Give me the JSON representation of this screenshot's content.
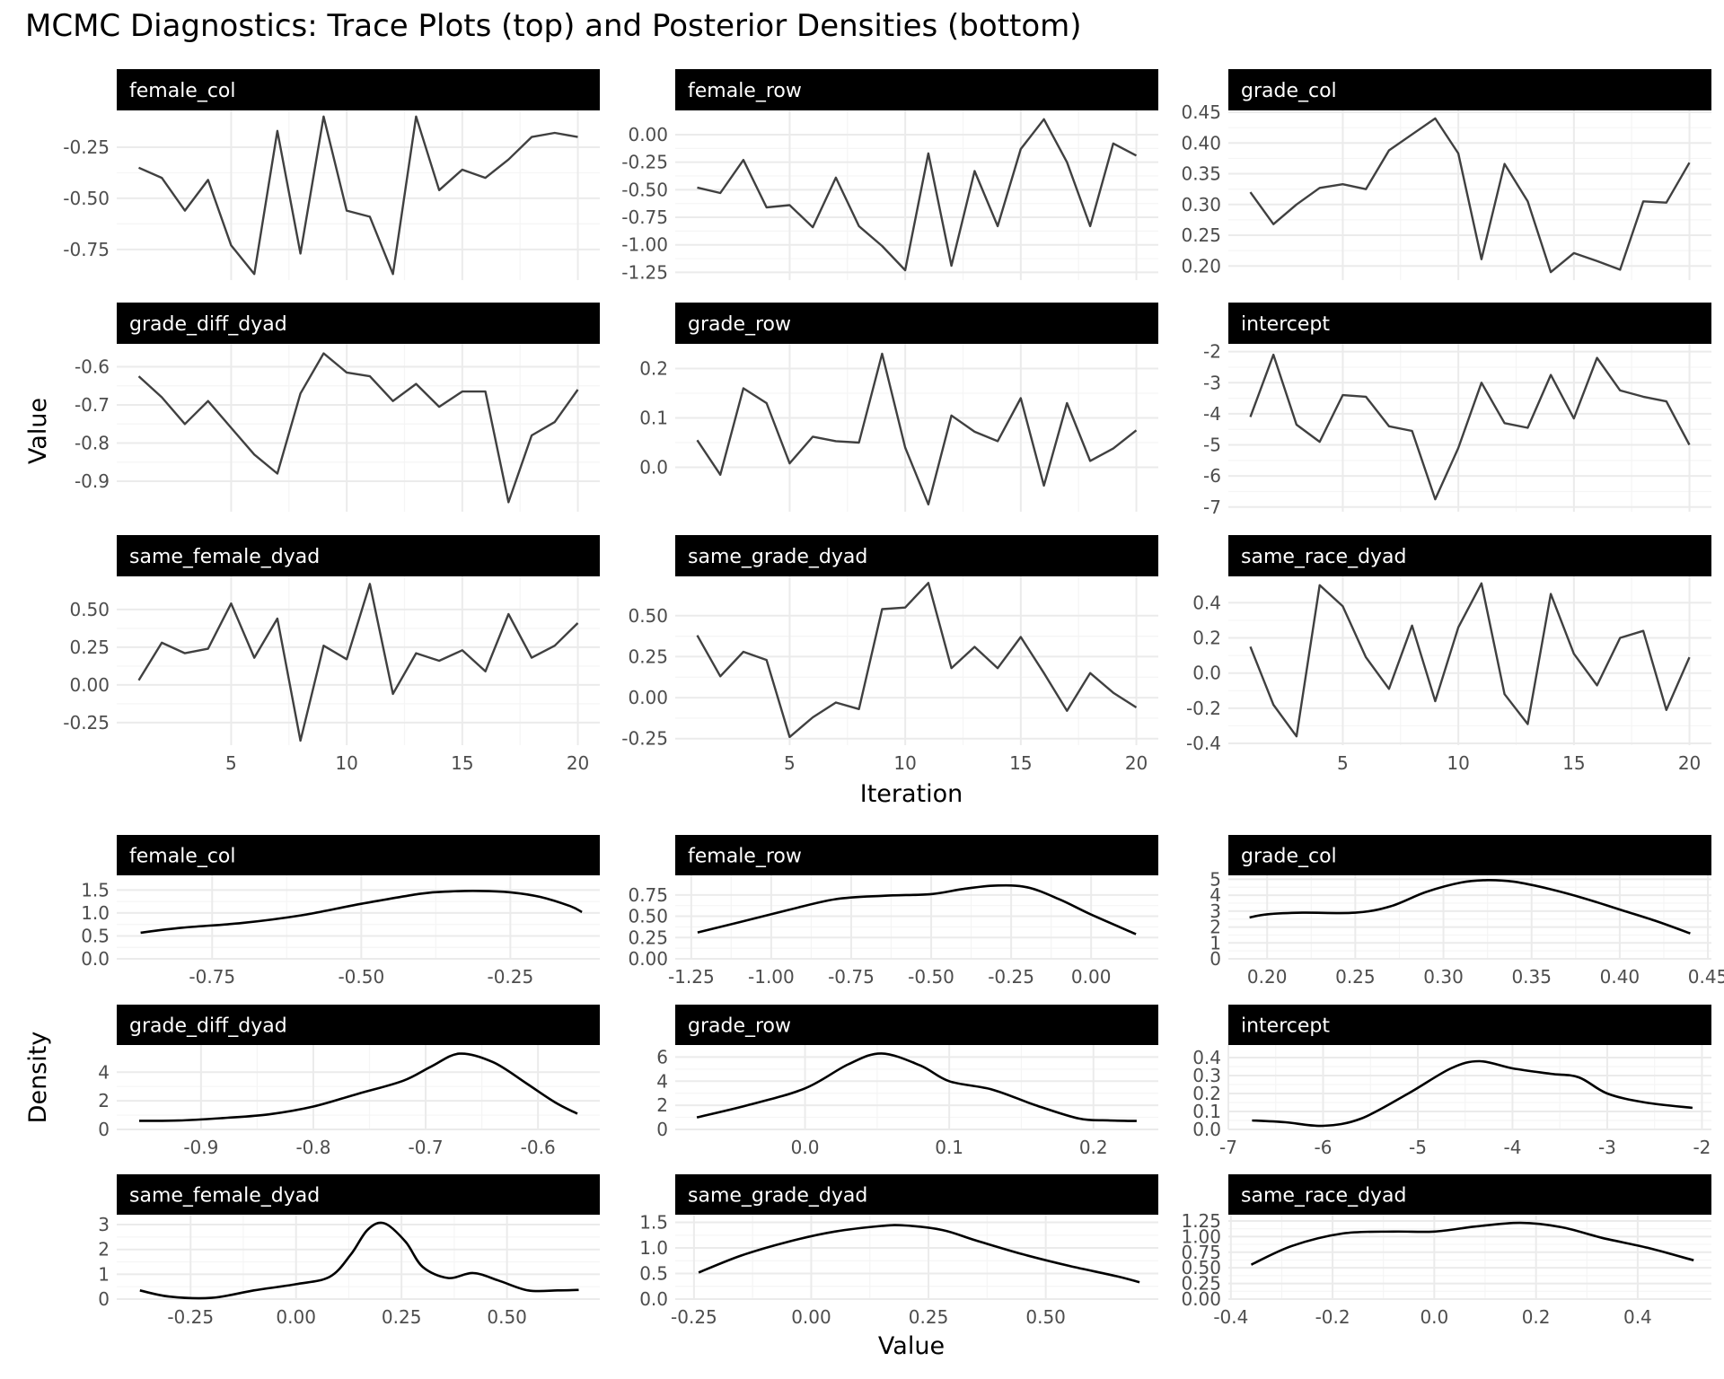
{
  "title": "MCMC Diagnostics: Trace Plots (top) and Posterior Densities (bottom)",
  "colors": {
    "strip_bg": "#000000",
    "strip_text": "#ffffff",
    "trace_line": "#404040",
    "density_line": "#000000",
    "grid_major": "#ebebeb",
    "grid_minor": "#f5f5f5"
  },
  "chart_data": [
    {
      "name": "trace",
      "type": "line",
      "xlabel": "Iteration",
      "ylabel": "Value",
      "x": [
        1,
        2,
        3,
        4,
        5,
        6,
        7,
        8,
        9,
        10,
        11,
        12,
        13,
        14,
        15,
        16,
        17,
        18,
        19,
        20
      ],
      "xlim": [
        0.05,
        20.95
      ],
      "xticks": [
        5,
        10,
        15,
        20
      ],
      "xtick_labels": [
        "5",
        "10",
        "15",
        "20"
      ],
      "grid": true,
      "panels": [
        {
          "label": "female_col",
          "ylim": [
            -0.9,
            -0.07
          ],
          "yticks": [
            -0.75,
            -0.5,
            -0.25
          ],
          "ytick_labels": [
            "-0.75",
            "-0.50",
            "-0.25"
          ],
          "values": [
            -0.35,
            -0.4,
            -0.56,
            -0.41,
            -0.73,
            -0.87,
            -0.17,
            -0.77,
            -0.1,
            -0.56,
            -0.59,
            -0.87,
            -0.1,
            -0.46,
            -0.36,
            -0.4,
            -0.31,
            -0.2,
            -0.18,
            -0.2
          ]
        },
        {
          "label": "female_row",
          "ylim": [
            -1.32,
            0.22
          ],
          "yticks": [
            -1.25,
            -1.0,
            -0.75,
            -0.5,
            -0.25,
            0.0
          ],
          "ytick_labels": [
            "-1.25",
            "-1.00",
            "-0.75",
            "-0.50",
            "-0.25",
            "0.00"
          ],
          "values": [
            -0.48,
            -0.53,
            -0.23,
            -0.66,
            -0.64,
            -0.84,
            -0.39,
            -0.83,
            -1.01,
            -1.23,
            -0.17,
            -1.19,
            -0.33,
            -0.83,
            -0.13,
            0.14,
            -0.25,
            -0.83,
            -0.08,
            -0.19
          ]
        },
        {
          "label": "grade_col",
          "ylim": [
            0.177,
            0.453
          ],
          "yticks": [
            0.2,
            0.25,
            0.3,
            0.35,
            0.4,
            0.45
          ],
          "ytick_labels": [
            "0.20",
            "0.25",
            "0.30",
            "0.35",
            "0.40",
            "0.45"
          ],
          "values": [
            0.32,
            0.268,
            0.3,
            0.327,
            0.333,
            0.325,
            0.388,
            0.414,
            0.44,
            0.383,
            0.211,
            0.366,
            0.305,
            0.19,
            0.221,
            0.208,
            0.194,
            0.305,
            0.303,
            0.368
          ]
        },
        {
          "label": "grade_diff_dyad",
          "ylim": [
            -0.98,
            -0.54
          ],
          "yticks": [
            -0.9,
            -0.8,
            -0.7,
            -0.6
          ],
          "ytick_labels": [
            "-0.9",
            "-0.8",
            "-0.7",
            "-0.6"
          ],
          "values": [
            -0.625,
            -0.68,
            -0.75,
            -0.69,
            -0.76,
            -0.83,
            -0.88,
            -0.67,
            -0.565,
            -0.615,
            -0.625,
            -0.69,
            -0.645,
            -0.705,
            -0.665,
            -0.665,
            -0.955,
            -0.78,
            -0.745,
            -0.66
          ]
        },
        {
          "label": "grade_row",
          "ylim": [
            -0.09,
            0.25
          ],
          "yticks": [
            0.0,
            0.1,
            0.2
          ],
          "ytick_labels": [
            "0.0",
            "0.1",
            "0.2"
          ],
          "values": [
            0.055,
            -0.015,
            0.16,
            0.13,
            0.008,
            0.062,
            0.053,
            0.05,
            0.23,
            0.04,
            -0.075,
            0.105,
            0.072,
            0.053,
            0.14,
            -0.037,
            0.13,
            0.013,
            0.038,
            0.075
          ]
        },
        {
          "label": "intercept",
          "ylim": [
            -7.15,
            -1.75
          ],
          "yticks": [
            -7,
            -6,
            -5,
            -4,
            -3,
            -2
          ],
          "ytick_labels": [
            "-7",
            "-6",
            "-5",
            "-4",
            "-3",
            "-2"
          ],
          "values": [
            -4.1,
            -2.1,
            -4.35,
            -4.9,
            -3.4,
            -3.45,
            -4.4,
            -4.55,
            -6.75,
            -5.1,
            -3.0,
            -4.3,
            -4.45,
            -2.75,
            -4.15,
            -2.2,
            -3.25,
            -3.45,
            -3.6,
            -5.0
          ]
        },
        {
          "label": "same_female_dyad",
          "ylim": [
            -0.4,
            0.72
          ],
          "yticks": [
            -0.25,
            0.0,
            0.25,
            0.5
          ],
          "ytick_labels": [
            "-0.25",
            "0.00",
            "0.25",
            "0.50"
          ],
          "values": [
            0.03,
            0.28,
            0.21,
            0.24,
            0.54,
            0.18,
            0.44,
            -0.37,
            0.26,
            0.17,
            0.67,
            -0.06,
            0.21,
            0.16,
            0.23,
            0.09,
            0.47,
            0.18,
            0.26,
            0.41
          ]
        },
        {
          "label": "same_grade_dyad",
          "ylim": [
            -0.29,
            0.74
          ],
          "yticks": [
            -0.25,
            0.0,
            0.25,
            0.5
          ],
          "ytick_labels": [
            "-0.25",
            "0.00",
            "0.25",
            "0.50"
          ],
          "values": [
            0.38,
            0.13,
            0.28,
            0.23,
            -0.24,
            -0.12,
            -0.03,
            -0.07,
            0.54,
            0.55,
            0.7,
            0.18,
            0.31,
            0.18,
            0.37,
            0.15,
            -0.08,
            0.15,
            0.03,
            -0.06
          ]
        },
        {
          "label": "same_race_dyad",
          "ylim": [
            -0.41,
            0.55
          ],
          "yticks": [
            -0.4,
            -0.2,
            0.0,
            0.2,
            0.4
          ],
          "ytick_labels": [
            "-0.4",
            "-0.2",
            "0.0",
            "0.2",
            "0.4"
          ],
          "values": [
            0.15,
            -0.18,
            -0.36,
            0.5,
            0.38,
            0.09,
            -0.09,
            0.27,
            -0.16,
            0.26,
            0.51,
            -0.12,
            -0.29,
            0.45,
            0.11,
            -0.07,
            0.2,
            0.24,
            -0.21,
            0.09
          ]
        }
      ]
    },
    {
      "name": "density",
      "type": "line",
      "xlabel": "Value",
      "ylabel": "Density",
      "grid": true,
      "panels": [
        {
          "label": "female_col",
          "xlim": [
            -0.91,
            -0.1
          ],
          "ylim": [
            0,
            1.82
          ],
          "xticks": [
            -0.75,
            -0.5,
            -0.25
          ],
          "xtick_labels": [
            "-0.75",
            "-0.50",
            "-0.25"
          ],
          "yticks": [
            0,
            0.5,
            1.0,
            1.5
          ],
          "ytick_labels": [
            "0.0",
            "0.5",
            "1.0",
            "1.5"
          ],
          "x": [
            -0.87,
            -0.8,
            -0.7,
            -0.6,
            -0.5,
            -0.4,
            -0.35,
            -0.3,
            -0.25,
            -0.2,
            -0.15,
            -0.13
          ],
          "y": [
            0.57,
            0.68,
            0.78,
            0.95,
            1.2,
            1.42,
            1.47,
            1.48,
            1.45,
            1.35,
            1.15,
            1.02
          ]
        },
        {
          "label": "female_row",
          "xlim": [
            -1.3,
            0.21
          ],
          "ylim": [
            0,
            0.98
          ],
          "xticks": [
            -1.25,
            -1.0,
            -0.75,
            -0.5,
            -0.25,
            0.0
          ],
          "xtick_labels": [
            "-1.25",
            "-1.00",
            "-0.75",
            "-0.50",
            "-0.25",
            "0.00"
          ],
          "yticks": [
            0,
            0.25,
            0.5,
            0.75
          ],
          "ytick_labels": [
            "0.00",
            "0.25",
            "0.50",
            "0.75"
          ],
          "x": [
            -1.23,
            -1.1,
            -0.95,
            -0.8,
            -0.65,
            -0.5,
            -0.4,
            -0.3,
            -0.2,
            -0.1,
            0.0,
            0.14
          ],
          "y": [
            0.31,
            0.43,
            0.57,
            0.7,
            0.74,
            0.76,
            0.82,
            0.86,
            0.84,
            0.7,
            0.52,
            0.29
          ]
        },
        {
          "label": "grade_col",
          "xlim": [
            0.178,
            0.452
          ],
          "ylim": [
            0,
            5.25
          ],
          "xticks": [
            0.2,
            0.25,
            0.3,
            0.35,
            0.4,
            0.45
          ],
          "xtick_labels": [
            "0.20",
            "0.25",
            "0.30",
            "0.35",
            "0.40",
            "0.45"
          ],
          "yticks": [
            0,
            1,
            2,
            3,
            4,
            5
          ],
          "ytick_labels": [
            "0",
            "1",
            "2",
            "3",
            "4",
            "5"
          ],
          "x": [
            0.19,
            0.2,
            0.22,
            0.25,
            0.27,
            0.29,
            0.31,
            0.325,
            0.34,
            0.36,
            0.38,
            0.4,
            0.42,
            0.44
          ],
          "y": [
            2.6,
            2.8,
            2.9,
            2.9,
            3.3,
            4.2,
            4.8,
            4.95,
            4.85,
            4.4,
            3.8,
            3.1,
            2.4,
            1.6
          ]
        },
        {
          "label": "grade_diff_dyad",
          "xlim": [
            -0.975,
            -0.545
          ],
          "ylim": [
            0,
            5.9
          ],
          "xticks": [
            -0.9,
            -0.8,
            -0.7,
            -0.6
          ],
          "xtick_labels": [
            "-0.9",
            "-0.8",
            "-0.7",
            "-0.6"
          ],
          "yticks": [
            0,
            2,
            4
          ],
          "ytick_labels": [
            "0",
            "2",
            "4"
          ],
          "x": [
            -0.955,
            -0.92,
            -0.88,
            -0.84,
            -0.8,
            -0.76,
            -0.72,
            -0.695,
            -0.67,
            -0.64,
            -0.61,
            -0.585,
            -0.565
          ],
          "y": [
            0.6,
            0.62,
            0.8,
            1.05,
            1.6,
            2.5,
            3.4,
            4.4,
            5.3,
            4.7,
            3.2,
            1.9,
            1.1
          ]
        },
        {
          "label": "grade_row",
          "xlim": [
            -0.09,
            0.245
          ],
          "ylim": [
            0,
            7.0
          ],
          "xticks": [
            0.0,
            0.1,
            0.2
          ],
          "xtick_labels": [
            "0.0",
            "0.1",
            "0.2"
          ],
          "yticks": [
            0,
            2,
            4,
            6
          ],
          "ytick_labels": [
            "0",
            "2",
            "4",
            "6"
          ],
          "x": [
            -0.075,
            -0.04,
            0.0,
            0.03,
            0.053,
            0.08,
            0.1,
            0.13,
            0.16,
            0.19,
            0.21,
            0.23
          ],
          "y": [
            1.0,
            2.0,
            3.4,
            5.4,
            6.3,
            5.3,
            4.0,
            3.3,
            2.0,
            0.9,
            0.75,
            0.7
          ]
        },
        {
          "label": "intercept",
          "xlim": [
            -7.0,
            -1.9
          ],
          "ylim": [
            0,
            0.47
          ],
          "xticks": [
            -7,
            -6,
            -5,
            -4,
            -3,
            -2
          ],
          "xtick_labels": [
            "-7",
            "-6",
            "-5",
            "-4",
            "-3",
            "-2"
          ],
          "yticks": [
            0,
            0.1,
            0.2,
            0.3,
            0.4
          ],
          "ytick_labels": [
            "0.0",
            "0.1",
            "0.2",
            "0.3",
            "0.4"
          ],
          "x": [
            -6.75,
            -6.4,
            -6.0,
            -5.6,
            -5.1,
            -4.65,
            -4.35,
            -4.0,
            -3.6,
            -3.3,
            -3.0,
            -2.6,
            -2.1
          ],
          "y": [
            0.05,
            0.04,
            0.02,
            0.06,
            0.2,
            0.34,
            0.38,
            0.34,
            0.31,
            0.29,
            0.2,
            0.15,
            0.12
          ]
        },
        {
          "label": "same_female_dyad",
          "xlim": [
            -0.425,
            0.72
          ],
          "ylim": [
            0,
            3.4
          ],
          "xticks": [
            -0.25,
            0.0,
            0.25,
            0.5
          ],
          "xtick_labels": [
            "-0.25",
            "0.00",
            "0.25",
            "0.50"
          ],
          "yticks": [
            0,
            1,
            2,
            3
          ],
          "ytick_labels": [
            "0",
            "1",
            "2",
            "3"
          ],
          "x": [
            -0.37,
            -0.3,
            -0.2,
            -0.1,
            0.0,
            0.08,
            0.13,
            0.17,
            0.21,
            0.26,
            0.3,
            0.36,
            0.42,
            0.48,
            0.55,
            0.62,
            0.67
          ],
          "y": [
            0.35,
            0.1,
            0.05,
            0.35,
            0.6,
            0.9,
            1.8,
            2.8,
            3.05,
            2.3,
            1.3,
            0.85,
            1.05,
            0.75,
            0.35,
            0.35,
            0.37
          ]
        },
        {
          "label": "same_grade_dyad",
          "xlim": [
            -0.29,
            0.74
          ],
          "ylim": [
            0,
            1.65
          ],
          "xticks": [
            -0.25,
            0.0,
            0.25,
            0.5
          ],
          "xtick_labels": [
            "-0.25",
            "0.00",
            "0.25",
            "0.50"
          ],
          "yticks": [
            0,
            0.5,
            1.0,
            1.5
          ],
          "ytick_labels": [
            "0.0",
            "0.5",
            "1.0",
            "1.5"
          ],
          "x": [
            -0.24,
            -0.15,
            -0.05,
            0.05,
            0.15,
            0.2,
            0.28,
            0.35,
            0.45,
            0.55,
            0.65,
            0.7
          ],
          "y": [
            0.52,
            0.85,
            1.12,
            1.32,
            1.43,
            1.44,
            1.35,
            1.15,
            0.88,
            0.65,
            0.45,
            0.33
          ]
        },
        {
          "label": "same_race_dyad",
          "xlim": [
            -0.405,
            0.545
          ],
          "ylim": [
            0,
            1.35
          ],
          "xticks": [
            -0.4,
            -0.2,
            0.0,
            0.2,
            0.4
          ],
          "xtick_labels": [
            "-0.4",
            "-0.2",
            "0.0",
            "0.2",
            "0.4"
          ],
          "yticks": [
            0,
            0.25,
            0.5,
            0.75,
            1.0,
            1.25
          ],
          "ytick_labels": [
            "0.00",
            "0.25",
            "0.50",
            "0.75",
            "1.00",
            "1.25"
          ],
          "x": [
            -0.36,
            -0.28,
            -0.18,
            -0.08,
            0.0,
            0.08,
            0.17,
            0.25,
            0.33,
            0.42,
            0.51
          ],
          "y": [
            0.55,
            0.85,
            1.05,
            1.08,
            1.08,
            1.16,
            1.22,
            1.15,
            0.98,
            0.82,
            0.62
          ]
        }
      ]
    }
  ]
}
